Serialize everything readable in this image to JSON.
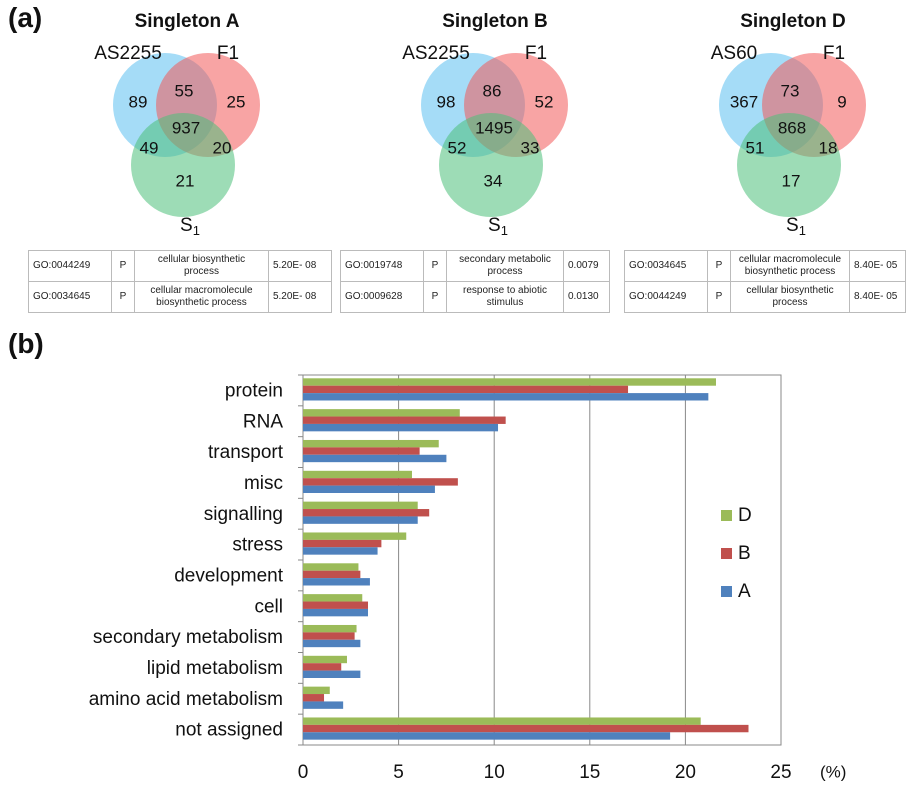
{
  "panel_a": {
    "label": "(a)",
    "venns": [
      {
        "title": "Singleton A",
        "set1": "AS2255",
        "set2": "F1",
        "set3_main": "S",
        "set3_sub": "1",
        "regions": {
          "only1": 89,
          "only2": 25,
          "only3": 21,
          "r12": 55,
          "r13": 49,
          "r23": 20,
          "all": 937
        },
        "go_table": [
          {
            "id": "GO:0044249",
            "cat": "P",
            "term": [
              "cellular biosynthetic",
              "process"
            ],
            "pval": "5.20E- 08"
          },
          {
            "id": "GO:0034645",
            "cat": "P",
            "term": [
              "cellular macromolecule",
              "biosynthetic process"
            ],
            "pval": "5.20E- 08"
          }
        ]
      },
      {
        "title": "Singleton B",
        "set1": "AS2255",
        "set2": "F1",
        "set3_main": "S",
        "set3_sub": "1",
        "regions": {
          "only1": 98,
          "only2": 52,
          "only3": 34,
          "r12": 86,
          "r13": 52,
          "r23": 33,
          "all": 1495
        },
        "go_table": [
          {
            "id": "GO:0019748",
            "cat": "P",
            "term": [
              "secondary metabolic",
              "process"
            ],
            "pval": "0.0079"
          },
          {
            "id": "GO:0009628",
            "cat": "P",
            "term": [
              "response to abiotic",
              "stimulus"
            ],
            "pval": "0.0130"
          }
        ]
      },
      {
        "title": "Singleton D",
        "set1": "AS60",
        "set2": "F1",
        "set3_main": "S",
        "set3_sub": "1",
        "regions": {
          "only1": 367,
          "only2": 9,
          "only3": 17,
          "r12": 73,
          "r13": 51,
          "r23": 18,
          "all": 868
        },
        "go_table": [
          {
            "id": "GO:0034645",
            "cat": "P",
            "term": [
              "cellular macromolecule",
              "biosynthetic process"
            ],
            "pval": "8.40E- 05"
          },
          {
            "id": "GO:0044249",
            "cat": "P",
            "term": [
              "cellular biosynthetic",
              "process"
            ],
            "pval": "8.40E- 05"
          }
        ]
      }
    ]
  },
  "panel_b_label": "(b)",
  "chart_data": {
    "type": "bar",
    "orientation": "horizontal",
    "categories": [
      "protein",
      "RNA",
      "transport",
      "misc",
      "signalling",
      "stress",
      "development",
      "cell",
      "secondary metabolism",
      "lipid metabolism",
      "amino acid metabolism",
      "not assigned"
    ],
    "series": [
      {
        "name": "D",
        "color": "#9bbb59",
        "values": [
          21.6,
          8.2,
          7.1,
          5.7,
          6.0,
          5.4,
          2.9,
          3.1,
          2.8,
          2.3,
          1.4,
          20.8
        ]
      },
      {
        "name": "B",
        "color": "#c0504d",
        "values": [
          17.0,
          10.6,
          6.1,
          8.1,
          6.6,
          4.1,
          3.0,
          3.4,
          2.7,
          2.0,
          1.1,
          23.3
        ]
      },
      {
        "name": "A",
        "color": "#4f81bd",
        "values": [
          21.2,
          10.2,
          7.5,
          6.9,
          6.0,
          3.9,
          3.5,
          3.4,
          3.0,
          3.0,
          2.1,
          19.2
        ]
      }
    ],
    "xlim": [
      0,
      25
    ],
    "xticks": [
      0,
      5,
      10,
      15,
      20,
      25
    ],
    "xunit": "(%)",
    "grid": true,
    "legend_position": "right"
  },
  "colors": {
    "blue": "#5bc0f0",
    "red": "#f25a5a",
    "green": "#4cc07a"
  }
}
